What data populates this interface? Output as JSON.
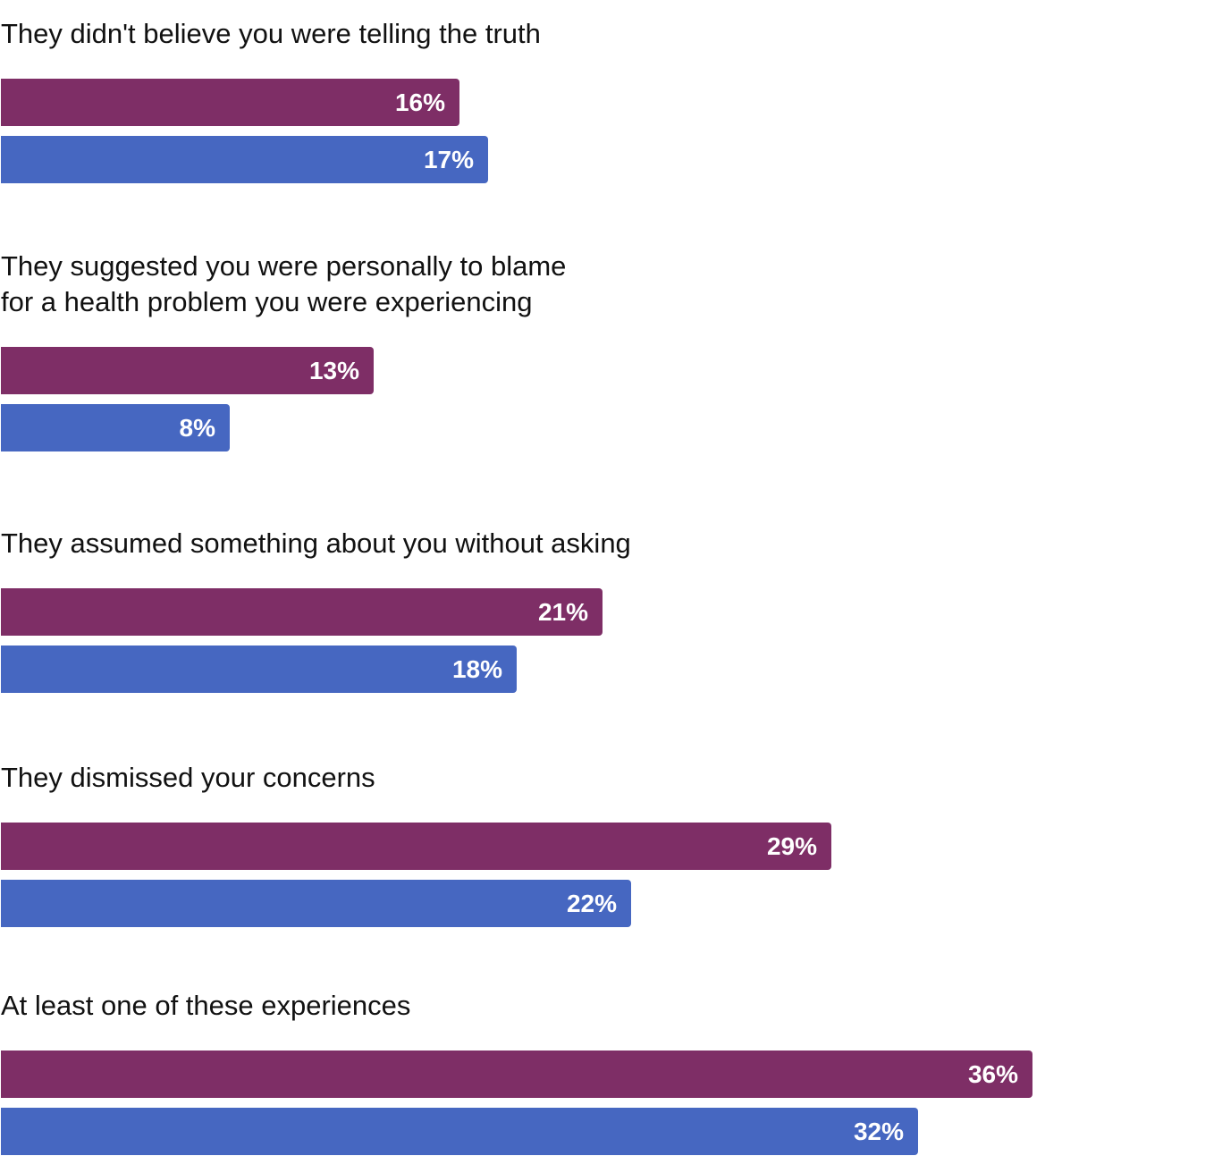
{
  "chart_data": {
    "type": "bar",
    "orientation": "horizontal",
    "categories": [
      "They didn't believe you were telling the truth",
      "They suggested you were personally to blame\nfor a health problem you were experiencing",
      "They assumed something about you without asking",
      "They dismissed your concerns",
      "At least one of these experiences"
    ],
    "series": [
      {
        "values": [
          16,
          13,
          21,
          29,
          36
        ],
        "color": "#7e2e66"
      },
      {
        "values": [
          17,
          8,
          18,
          22,
          32
        ],
        "color": "#4667c1"
      }
    ],
    "value_suffix": "%",
    "xlim": [
      0,
      42
    ],
    "grid": false
  }
}
